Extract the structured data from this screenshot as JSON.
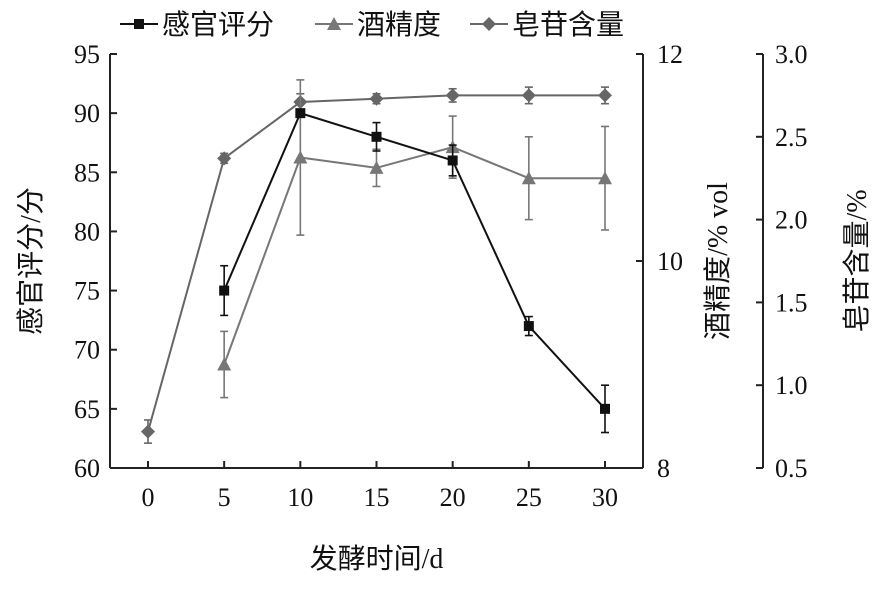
{
  "chart_data": {
    "type": "line",
    "title": "",
    "xlabel": "发酵时间/d",
    "x": [
      0,
      5,
      10,
      15,
      20,
      25,
      30
    ],
    "xticks": [
      "0",
      "5",
      "10",
      "15",
      "20",
      "25",
      "30"
    ],
    "xlim": [
      0,
      30
    ],
    "axes": [
      {
        "label": "感官评分/分",
        "ylim": [
          60,
          95
        ],
        "ticks": [
          "60",
          "65",
          "70",
          "75",
          "80",
          "85",
          "90",
          "95"
        ],
        "tickvals": [
          60,
          65,
          70,
          75,
          80,
          85,
          90,
          95
        ],
        "side": "left"
      },
      {
        "label": "酒精度/% vol",
        "ylim": [
          8,
          12
        ],
        "ticks": [
          "8",
          "10",
          "12"
        ],
        "tickvals": [
          8,
          10,
          12
        ],
        "side": "right"
      },
      {
        "label": "皂苷含量/%",
        "ylim": [
          0.5,
          3.0
        ],
        "ticks": [
          "0.5",
          "1.0",
          "1.5",
          "2.0",
          "2.5",
          "3.0"
        ],
        "tickvals": [
          0.5,
          1.0,
          1.5,
          2.0,
          2.5,
          3.0
        ],
        "side": "right-outer"
      }
    ],
    "series": [
      {
        "name": "感官评分",
        "axis": 0,
        "marker": "square",
        "color": "#111111",
        "values": [
          null,
          75,
          90,
          88,
          86,
          72,
          65
        ],
        "errors": [
          null,
          2.1,
          0.3,
          1.2,
          1.3,
          0.8,
          2.0
        ]
      },
      {
        "name": "酒精度",
        "axis": 1,
        "marker": "triangle",
        "color": "#777777",
        "values": [
          null,
          9.0,
          11.0,
          10.9,
          11.1,
          10.8,
          10.8
        ],
        "errors": [
          null,
          0.32,
          0.75,
          0.18,
          0.3,
          0.4,
          0.5
        ]
      },
      {
        "name": "皂苷含量",
        "axis": 2,
        "marker": "diamond",
        "color": "#666666",
        "values": [
          0.72,
          2.37,
          2.71,
          2.73,
          2.75,
          2.75,
          2.75
        ],
        "errors": [
          0.07,
          0.03,
          0.05,
          0.03,
          0.04,
          0.05,
          0.05
        ]
      }
    ],
    "legend": "top",
    "grid": false
  }
}
